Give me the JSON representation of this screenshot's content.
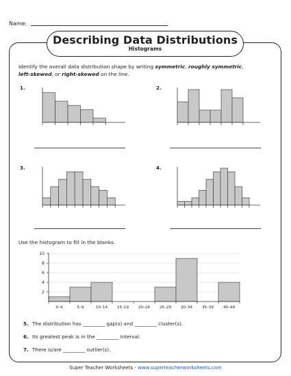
{
  "header": {
    "name_label": "Name:"
  },
  "title": "Describing Data Distributions",
  "subtitle": "Histograms",
  "instructions": {
    "part1": "Identify the overall data distribution shape by writing ",
    "w1": "symmetric",
    "sep1": ", ",
    "w2": "roughly symmetric",
    "sep2": ",",
    "w3": "left-skewed",
    "sep3": ", or ",
    "w4": "right-skewed",
    "part2": " on the line."
  },
  "problems": [
    {
      "number": "1.",
      "values": [
        7,
        5,
        4,
        3,
        1
      ]
    },
    {
      "number": "2.",
      "values": [
        5,
        8,
        3,
        3,
        8,
        6
      ]
    },
    {
      "number": "3.",
      "values": [
        2,
        5,
        7,
        9,
        9,
        7,
        5,
        4,
        2
      ]
    },
    {
      "number": "4.",
      "values": [
        1,
        1,
        2,
        4,
        7,
        9,
        10,
        9,
        5,
        2
      ]
    }
  ],
  "fill_instructions": "Use the histogram to fill in the blanks.",
  "chart_data": {
    "type": "bar",
    "categories": [
      "0–4",
      "5–9",
      "10–14",
      "15–19",
      "20–24",
      "25–29",
      "30–34",
      "35–39",
      "40–44"
    ],
    "values": [
      1,
      3,
      4,
      0,
      0,
      3,
      9,
      0,
      4
    ],
    "yticks": [
      2,
      4,
      6,
      8,
      10
    ],
    "ylim": [
      0,
      10
    ],
    "title": "",
    "xlabel": "",
    "ylabel": ""
  },
  "questions": [
    {
      "number": "5.",
      "text": "The distribution has _________ gap(s) and _________ cluster(s)."
    },
    {
      "number": "6.",
      "text": "Its greatest peak is in the _________ interval."
    },
    {
      "number": "7.",
      "text": "There is/are _________ outlier(s)."
    }
  ],
  "footer": {
    "left": "Super Teacher Worksheets - ",
    "url": "www.superteacherworksheets.com"
  }
}
